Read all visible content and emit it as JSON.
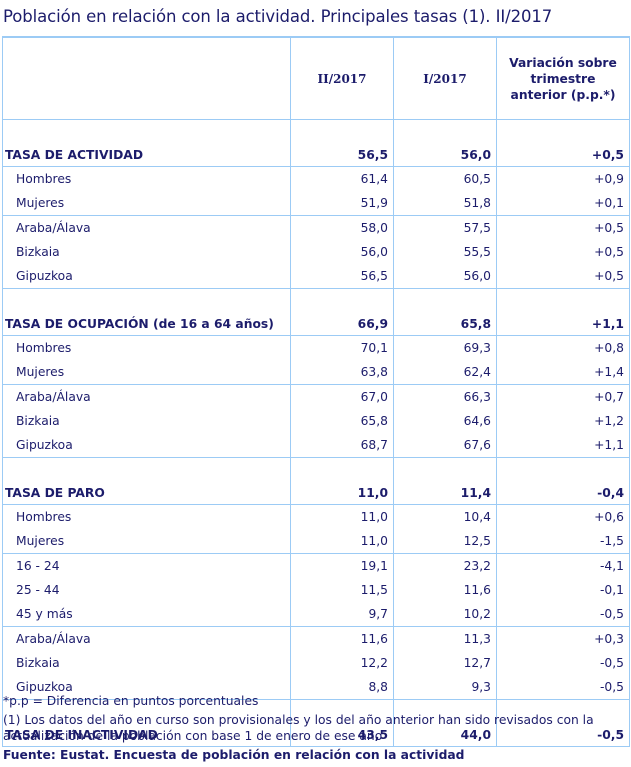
{
  "title": "Población en relación con la actividad. Principales tasas (1). II/2017",
  "columns": {
    "label": "",
    "current": "II/2017",
    "previous": "I/2017",
    "variation": "Variación sobre trimestre anterior (p.p.*)"
  },
  "groups": [
    {
      "label": "TASA DE ACTIVIDAD",
      "current": "56,5",
      "previous": "56,0",
      "variation": "+0,5",
      "subgroups": [
        [
          {
            "label": "Hombres",
            "current": "61,4",
            "previous": "60,5",
            "variation": "+0,9"
          },
          {
            "label": "Mujeres",
            "current": "51,9",
            "previous": "51,8",
            "variation": "+0,1"
          }
        ],
        [
          {
            "label": "Araba/Álava",
            "current": "58,0",
            "previous": "57,5",
            "variation": "+0,5"
          },
          {
            "label": "Bizkaia",
            "current": "56,0",
            "previous": "55,5",
            "variation": "+0,5"
          },
          {
            "label": "Gipuzkoa",
            "current": "56,5",
            "previous": "56,0",
            "variation": "+0,5"
          }
        ]
      ]
    },
    {
      "label": "TASA DE OCUPACIÓN (de 16 a 64 años)",
      "current": "66,9",
      "previous": "65,8",
      "variation": "+1,1",
      "subgroups": [
        [
          {
            "label": "Hombres",
            "current": "70,1",
            "previous": "69,3",
            "variation": "+0,8"
          },
          {
            "label": "Mujeres",
            "current": "63,8",
            "previous": "62,4",
            "variation": "+1,4"
          }
        ],
        [
          {
            "label": "Araba/Álava",
            "current": "67,0",
            "previous": "66,3",
            "variation": "+0,7"
          },
          {
            "label": "Bizkaia",
            "current": "65,8",
            "previous": "64,6",
            "variation": "+1,2"
          },
          {
            "label": "Gipuzkoa",
            "current": "68,7",
            "previous": "67,6",
            "variation": "+1,1"
          }
        ]
      ]
    },
    {
      "label": "TASA DE PARO",
      "current": "11,0",
      "previous": "11,4",
      "variation": "-0,4",
      "subgroups": [
        [
          {
            "label": "Hombres",
            "current": "11,0",
            "previous": "10,4",
            "variation": "+0,6"
          },
          {
            "label": "Mujeres",
            "current": "11,0",
            "previous": "12,5",
            "variation": "-1,5"
          }
        ],
        [
          {
            "label": "16 - 24",
            "current": "19,1",
            "previous": "23,2",
            "variation": "-4,1"
          },
          {
            "label": "25 - 44",
            "current": "11,5",
            "previous": "11,6",
            "variation": "-0,1"
          },
          {
            "label": "45  y más",
            "current": "9,7",
            "previous": "10,2",
            "variation": "-0,5"
          }
        ],
        [
          {
            "label": "Araba/Álava",
            "current": "11,6",
            "previous": "11,3",
            "variation": "+0,3"
          },
          {
            "label": "Bizkaia",
            "current": "12,2",
            "previous": "12,7",
            "variation": "-0,5"
          },
          {
            "label": "Gipuzkoa",
            "current": "8,8",
            "previous": "9,3",
            "variation": "-0,5"
          }
        ]
      ]
    },
    {
      "label": "TASA DE INACTIVIDAD",
      "current": "43,5",
      "previous": "44,0",
      "variation": "-0,5",
      "subgroups": []
    }
  ],
  "notes": {
    "pp": "*p.p = Diferencia en puntos porcentuales",
    "note1": "(1) Los datos del año en curso son provisionales y los del año anterior han sido revisados con la actualización de la población con base 1 de enero de ese año",
    "source": "Fuente: Eustat. Encuesta de población en relación con la actividad"
  },
  "colors": {
    "text": "#1c1c6b",
    "border": "#9ccbf5",
    "background": "#ffffff"
  }
}
